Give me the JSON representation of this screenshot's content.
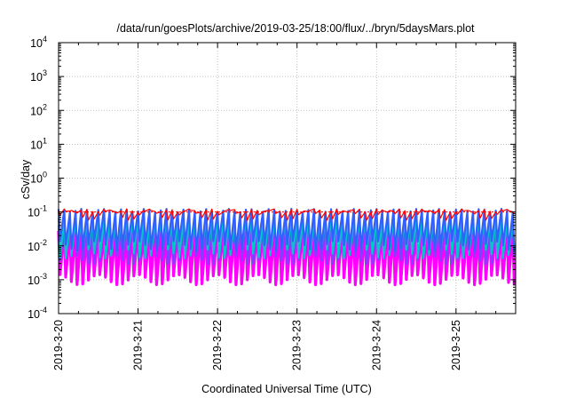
{
  "chart_data": {
    "type": "line",
    "title": "/data/run/goesPlots/archive/2019-03-25/18:00/flux/../bryn/5daysMars.plot",
    "xlabel": "Coordinated Universal Time (UTC)",
    "ylabel": "cSv/day",
    "y_scale": "log",
    "ylim": [
      0.0001,
      10000
    ],
    "xlim": [
      "2019-03-20",
      "2019-03-25T18:00"
    ],
    "x_ticks": [
      "2019-3-20",
      "2019-3-21",
      "2019-3-22",
      "2019-3-23",
      "2019-3-24",
      "2019-3-25"
    ],
    "y_tick_labels": [
      {
        "base": "10",
        "exp": "-4"
      },
      {
        "base": "10",
        "exp": "-3"
      },
      {
        "base": "10",
        "exp": "-2"
      },
      {
        "base": "10",
        "exp": "-1"
      },
      {
        "base": "10",
        "exp": "0"
      },
      {
        "base": "10",
        "exp": "1"
      },
      {
        "base": "10",
        "exp": "2"
      },
      {
        "base": "10",
        "exp": "3"
      },
      {
        "base": "10",
        "exp": "4"
      }
    ],
    "grid": true,
    "reference_line": {
      "value": 0.1,
      "color": "#ff0000"
    },
    "series_style": "sawtooth, ~14 cycles per day",
    "series": [
      {
        "color": "#ff0000",
        "values_range": [
          0.08,
          0.11
        ]
      },
      {
        "color": "#3060ff",
        "values_range": [
          0.01,
          0.11
        ]
      },
      {
        "color": "#00c8c8",
        "values_range": [
          0.006,
          0.06
        ]
      },
      {
        "color": "#8040ff",
        "values_range": [
          0.004,
          0.04
        ]
      },
      {
        "color": "#ff00ff",
        "values_range": [
          0.001,
          0.03
        ]
      }
    ]
  }
}
